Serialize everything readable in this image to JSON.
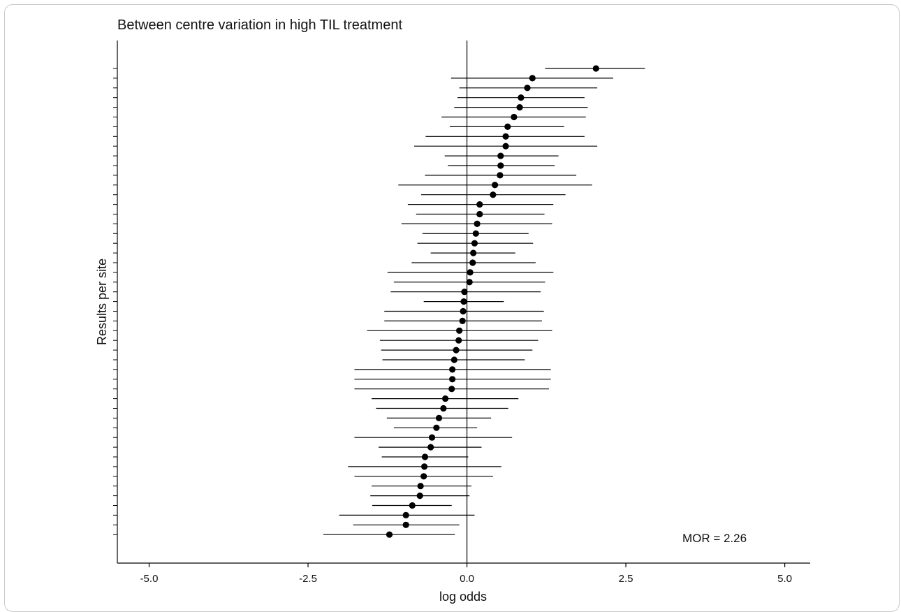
{
  "chart_data": {
    "type": "forest",
    "title": "Between centre variation in high TIL treatment",
    "xlabel": "log odds",
    "ylabel": "Results per site",
    "xlim": [
      -5.5,
      5.4
    ],
    "xticks": [
      {
        "value": -5.0,
        "label": "-5.0"
      },
      {
        "value": -2.5,
        "label": "-2.5"
      },
      {
        "value": 0.0,
        "label": "0.0"
      },
      {
        "value": 2.5,
        "label": "2.5"
      },
      {
        "value": 5.0,
        "label": "5.0"
      }
    ],
    "reference_line": 0,
    "annotation": "MOR = 2.26",
    "grid": false,
    "marker_color": "#000000",
    "sites": [
      {
        "estimate": 2.03,
        "lower": 1.23,
        "upper": 2.8
      },
      {
        "estimate": 1.03,
        "lower": -0.25,
        "upper": 2.3
      },
      {
        "estimate": 0.95,
        "lower": -0.12,
        "upper": 2.05
      },
      {
        "estimate": 0.85,
        "lower": -0.15,
        "upper": 1.85
      },
      {
        "estimate": 0.83,
        "lower": -0.2,
        "upper": 1.9
      },
      {
        "estimate": 0.74,
        "lower": -0.4,
        "upper": 1.87
      },
      {
        "estimate": 0.64,
        "lower": -0.27,
        "upper": 1.53
      },
      {
        "estimate": 0.61,
        "lower": -0.65,
        "upper": 1.85
      },
      {
        "estimate": 0.61,
        "lower": -0.83,
        "upper": 2.05
      },
      {
        "estimate": 0.53,
        "lower": -0.35,
        "upper": 1.44
      },
      {
        "estimate": 0.53,
        "lower": -0.3,
        "upper": 1.38
      },
      {
        "estimate": 0.52,
        "lower": -0.66,
        "upper": 1.72
      },
      {
        "estimate": 0.44,
        "lower": -1.08,
        "upper": 1.97
      },
      {
        "estimate": 0.41,
        "lower": -0.72,
        "upper": 1.55
      },
      {
        "estimate": 0.2,
        "lower": -0.93,
        "upper": 1.36
      },
      {
        "estimate": 0.2,
        "lower": -0.8,
        "upper": 1.22
      },
      {
        "estimate": 0.16,
        "lower": -1.03,
        "upper": 1.34
      },
      {
        "estimate": 0.14,
        "lower": -0.7,
        "upper": 0.97
      },
      {
        "estimate": 0.12,
        "lower": -0.78,
        "upper": 1.04
      },
      {
        "estimate": 0.1,
        "lower": -0.57,
        "upper": 0.76
      },
      {
        "estimate": 0.09,
        "lower": -0.87,
        "upper": 1.08
      },
      {
        "estimate": 0.05,
        "lower": -1.25,
        "upper": 1.36
      },
      {
        "estimate": 0.04,
        "lower": -1.15,
        "upper": 1.23
      },
      {
        "estimate": -0.04,
        "lower": -1.2,
        "upper": 1.16
      },
      {
        "estimate": -0.05,
        "lower": -0.68,
        "upper": 0.58
      },
      {
        "estimate": -0.06,
        "lower": -1.3,
        "upper": 1.21
      },
      {
        "estimate": -0.07,
        "lower": -1.3,
        "upper": 1.18
      },
      {
        "estimate": -0.12,
        "lower": -1.57,
        "upper": 1.34
      },
      {
        "estimate": -0.13,
        "lower": -1.37,
        "upper": 1.12
      },
      {
        "estimate": -0.17,
        "lower": -1.35,
        "upper": 1.03
      },
      {
        "estimate": -0.2,
        "lower": -1.33,
        "upper": 0.91
      },
      {
        "estimate": -0.23,
        "lower": -1.77,
        "upper": 1.32
      },
      {
        "estimate": -0.23,
        "lower": -1.77,
        "upper": 1.32
      },
      {
        "estimate": -0.24,
        "lower": -1.77,
        "upper": 1.29
      },
      {
        "estimate": -0.34,
        "lower": -1.5,
        "upper": 0.81
      },
      {
        "estimate": -0.37,
        "lower": -1.43,
        "upper": 0.65
      },
      {
        "estimate": -0.44,
        "lower": -1.26,
        "upper": 0.38
      },
      {
        "estimate": -0.48,
        "lower": -1.15,
        "upper": 0.16
      },
      {
        "estimate": -0.55,
        "lower": -1.77,
        "upper": 0.71
      },
      {
        "estimate": -0.57,
        "lower": -1.39,
        "upper": 0.23
      },
      {
        "estimate": -0.66,
        "lower": -1.34,
        "upper": 0.02
      },
      {
        "estimate": -0.67,
        "lower": -1.87,
        "upper": 0.54
      },
      {
        "estimate": -0.68,
        "lower": -1.77,
        "upper": 0.41
      },
      {
        "estimate": -0.73,
        "lower": -1.5,
        "upper": 0.07
      },
      {
        "estimate": -0.74,
        "lower": -1.52,
        "upper": 0.04
      },
      {
        "estimate": -0.86,
        "lower": -1.49,
        "upper": -0.24
      },
      {
        "estimate": -0.96,
        "lower": -2.01,
        "upper": 0.12
      },
      {
        "estimate": -0.96,
        "lower": -1.79,
        "upper": -0.12
      },
      {
        "estimate": -1.22,
        "lower": -2.26,
        "upper": -0.19
      }
    ]
  }
}
